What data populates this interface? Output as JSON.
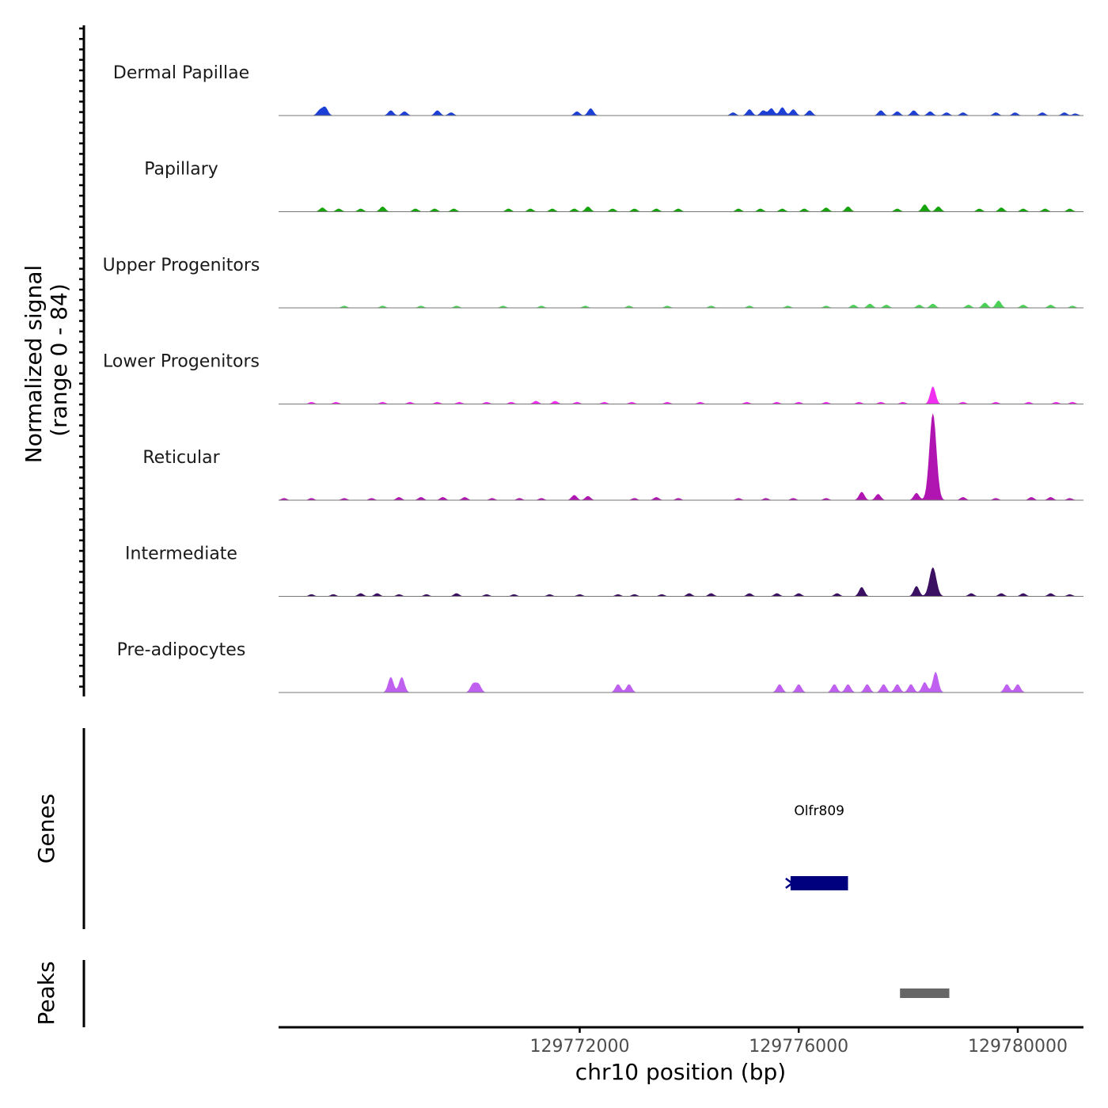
{
  "chart_data": {
    "type": "area",
    "chromosome": "chr10",
    "xlim": [
      129766500,
      129781200
    ],
    "ylim": [
      0,
      84
    ],
    "ylabel_line1": "Normalized signal",
    "ylabel_line2": "(range 0 - 84)",
    "xlabel": "chr10 position (bp)",
    "x_ticks": [
      129772000,
      129776000,
      129780000
    ],
    "x_tick_labels": [
      "129772000",
      "129776000",
      "129780000"
    ],
    "tracks": [
      {
        "name": "Dermal Papillae",
        "color": "#1c3fd6",
        "peaks": [
          [
            129767250,
            5
          ],
          [
            129767350,
            8
          ],
          [
            129768550,
            5
          ],
          [
            129768800,
            4
          ],
          [
            129769400,
            5
          ],
          [
            129769650,
            3
          ],
          [
            129771950,
            4
          ],
          [
            129772200,
            7
          ],
          [
            129774800,
            3
          ],
          [
            129775100,
            6
          ],
          [
            129775350,
            5
          ],
          [
            129775500,
            7
          ],
          [
            129775700,
            8
          ],
          [
            129775900,
            6
          ],
          [
            129776200,
            5
          ],
          [
            129777500,
            5
          ],
          [
            129777800,
            4
          ],
          [
            129778100,
            5
          ],
          [
            129778400,
            4
          ],
          [
            129778700,
            3
          ],
          [
            129779000,
            3
          ],
          [
            129779600,
            3
          ],
          [
            129779950,
            3
          ],
          [
            129780450,
            3
          ],
          [
            129780850,
            3
          ],
          [
            129781050,
            2
          ]
        ]
      },
      {
        "name": "Papillary",
        "color": "#16a30c",
        "peaks": [
          [
            129767300,
            4
          ],
          [
            129767600,
            3
          ],
          [
            129768000,
            3
          ],
          [
            129768400,
            5
          ],
          [
            129769000,
            3
          ],
          [
            129769350,
            3
          ],
          [
            129769700,
            3
          ],
          [
            129770700,
            3
          ],
          [
            129771100,
            3
          ],
          [
            129771500,
            3
          ],
          [
            129771900,
            3
          ],
          [
            129772150,
            5
          ],
          [
            129772600,
            3
          ],
          [
            129773000,
            3
          ],
          [
            129773400,
            3
          ],
          [
            129773800,
            3
          ],
          [
            129774900,
            3
          ],
          [
            129775300,
            3
          ],
          [
            129775700,
            3
          ],
          [
            129776100,
            3
          ],
          [
            129776500,
            4
          ],
          [
            129776900,
            5
          ],
          [
            129777800,
            3
          ],
          [
            129778300,
            7
          ],
          [
            129778550,
            5
          ],
          [
            129779300,
            3
          ],
          [
            129779700,
            4
          ],
          [
            129780100,
            3
          ],
          [
            129780500,
            3
          ],
          [
            129780950,
            3
          ]
        ]
      },
      {
        "name": "Upper Progenitors",
        "color": "#4cd157",
        "peaks": [
          [
            129767700,
            2
          ],
          [
            129768400,
            2
          ],
          [
            129769100,
            2
          ],
          [
            129769750,
            2
          ],
          [
            129770600,
            2
          ],
          [
            129771300,
            2
          ],
          [
            129772100,
            2
          ],
          [
            129772900,
            2
          ],
          [
            129773600,
            2
          ],
          [
            129774400,
            2
          ],
          [
            129775100,
            2
          ],
          [
            129775800,
            2
          ],
          [
            129776500,
            2
          ],
          [
            129777000,
            3
          ],
          [
            129777300,
            4
          ],
          [
            129777600,
            3
          ],
          [
            129778200,
            3
          ],
          [
            129778450,
            4
          ],
          [
            129779100,
            3
          ],
          [
            129779400,
            5
          ],
          [
            129779650,
            7
          ],
          [
            129780100,
            3
          ],
          [
            129780600,
            3
          ],
          [
            129781000,
            2
          ]
        ]
      },
      {
        "name": "Lower Progenitors",
        "color": "#f02ff0",
        "peaks": [
          [
            129767100,
            2
          ],
          [
            129767550,
            2
          ],
          [
            129768400,
            2
          ],
          [
            129768900,
            2
          ],
          [
            129769400,
            2
          ],
          [
            129769800,
            2
          ],
          [
            129770300,
            2
          ],
          [
            129770750,
            2
          ],
          [
            129771200,
            3
          ],
          [
            129771550,
            3
          ],
          [
            129771950,
            2
          ],
          [
            129772450,
            2
          ],
          [
            129772950,
            2
          ],
          [
            129773600,
            2
          ],
          [
            129774200,
            2
          ],
          [
            129775050,
            2
          ],
          [
            129775600,
            2
          ],
          [
            129776000,
            2
          ],
          [
            129776500,
            2
          ],
          [
            129777100,
            2
          ],
          [
            129777500,
            2
          ],
          [
            129777900,
            2
          ],
          [
            129778450,
            17
          ],
          [
            129779000,
            2
          ],
          [
            129779600,
            2
          ],
          [
            129780200,
            2
          ],
          [
            129780700,
            2
          ],
          [
            129781000,
            2
          ]
        ]
      },
      {
        "name": "Reticular",
        "color": "#b115b1",
        "peaks": [
          [
            129766600,
            2
          ],
          [
            129767100,
            2
          ],
          [
            129767700,
            2
          ],
          [
            129768200,
            2
          ],
          [
            129768700,
            3
          ],
          [
            129769100,
            3
          ],
          [
            129769500,
            3
          ],
          [
            129769900,
            3
          ],
          [
            129770400,
            2
          ],
          [
            129770900,
            2
          ],
          [
            129771300,
            2
          ],
          [
            129771900,
            5
          ],
          [
            129772150,
            4
          ],
          [
            129773000,
            2
          ],
          [
            129773400,
            3
          ],
          [
            129773800,
            2
          ],
          [
            129774900,
            2
          ],
          [
            129775400,
            2
          ],
          [
            129775900,
            2
          ],
          [
            129776500,
            2
          ],
          [
            129777150,
            8
          ],
          [
            129777450,
            6
          ],
          [
            129778150,
            7
          ],
          [
            129778450,
            84
          ],
          [
            129779000,
            3
          ],
          [
            129779600,
            2
          ],
          [
            129780250,
            3
          ],
          [
            129780600,
            3
          ],
          [
            129780950,
            2
          ]
        ]
      },
      {
        "name": "Intermediate",
        "color": "#3b0f62",
        "peaks": [
          [
            129767100,
            2
          ],
          [
            129767500,
            2
          ],
          [
            129768000,
            3
          ],
          [
            129768300,
            3
          ],
          [
            129768700,
            2
          ],
          [
            129769200,
            2
          ],
          [
            129769750,
            3
          ],
          [
            129770300,
            2
          ],
          [
            129770800,
            2
          ],
          [
            129771450,
            2
          ],
          [
            129772000,
            2
          ],
          [
            129772700,
            2
          ],
          [
            129773000,
            2
          ],
          [
            129773500,
            2
          ],
          [
            129774000,
            3
          ],
          [
            129774400,
            3
          ],
          [
            129775100,
            3
          ],
          [
            129775600,
            3
          ],
          [
            129776000,
            3
          ],
          [
            129776700,
            3
          ],
          [
            129777150,
            9
          ],
          [
            129778150,
            10
          ],
          [
            129778450,
            28
          ],
          [
            129779150,
            3
          ],
          [
            129779700,
            3
          ],
          [
            129780100,
            3
          ],
          [
            129780600,
            3
          ],
          [
            129780950,
            2
          ]
        ]
      },
      {
        "name": "Pre-adipocytes",
        "color": "#bf60f0",
        "peaks": [
          [
            129768550,
            15
          ],
          [
            129768750,
            15
          ],
          [
            129770050,
            8
          ],
          [
            129770150,
            8
          ],
          [
            129772700,
            8
          ],
          [
            129772900,
            8
          ],
          [
            129775650,
            8
          ],
          [
            129776000,
            8
          ],
          [
            129776650,
            8
          ],
          [
            129776900,
            8
          ],
          [
            129777250,
            8
          ],
          [
            129777550,
            8
          ],
          [
            129777800,
            8
          ],
          [
            129778050,
            8
          ],
          [
            129778300,
            10
          ],
          [
            129778500,
            20
          ],
          [
            129779800,
            8
          ],
          [
            129780000,
            8
          ]
        ]
      }
    ],
    "genes": [
      {
        "name": "Olfr809",
        "start": 129775850,
        "end": 129776900,
        "strand": "-",
        "color": "#00007f"
      }
    ],
    "peak_regions": [
      {
        "start": 129777850,
        "end": 129778750,
        "color": "#666666"
      }
    ],
    "gene_panel_label": "Genes",
    "peak_panel_label": "Peaks"
  }
}
